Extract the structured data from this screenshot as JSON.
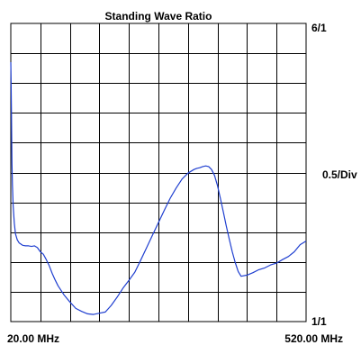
{
  "chart_data": {
    "type": "line",
    "title": "Standing Wave Ratio",
    "xlabel": "",
    "ylabel": "",
    "x_start_label": "20.00 MHz",
    "x_end_label": "520.00 MHz",
    "y_top_label": "6/1",
    "y_bottom_label": "1/1",
    "y_scale_label": "0.5/Div",
    "x_unit": "MHz",
    "xlim": [
      20,
      520
    ],
    "ylim": [
      1,
      6
    ],
    "grid": true,
    "grid_divisions": {
      "x": 10,
      "y": 10
    },
    "line_color": "#1f3fd0",
    "series": [
      {
        "x": [
          20,
          20.5,
          21,
          21.5,
          22,
          22.8,
          24,
          26,
          28,
          31,
          34,
          40,
          45,
          50,
          55,
          60,
          65,
          70,
          75,
          80,
          85,
          90,
          95,
          100,
          110,
          120,
          130,
          140,
          150,
          160,
          170,
          180,
          190,
          200,
          210,
          220,
          230,
          240,
          250,
          260,
          270,
          280,
          290,
          300,
          310,
          320,
          330,
          335,
          340,
          345,
          350,
          355,
          360,
          365,
          370,
          375,
          380,
          385,
          390,
          395,
          400,
          405,
          410,
          420,
          430,
          440,
          450,
          460,
          470,
          480,
          490,
          500,
          510,
          520
        ],
        "values": [
          5.35,
          5.05,
          4.55,
          4.05,
          3.65,
          3.3,
          2.95,
          2.65,
          2.47,
          2.37,
          2.32,
          2.28,
          2.27,
          2.27,
          2.26,
          2.27,
          2.24,
          2.17,
          2.13,
          2.04,
          1.94,
          1.81,
          1.7,
          1.6,
          1.45,
          1.33,
          1.22,
          1.17,
          1.13,
          1.12,
          1.14,
          1.16,
          1.27,
          1.41,
          1.56,
          1.69,
          1.83,
          2.03,
          2.24,
          2.45,
          2.66,
          2.87,
          3.07,
          3.24,
          3.39,
          3.49,
          3.55,
          3.57,
          3.58,
          3.6,
          3.61,
          3.6,
          3.55,
          3.45,
          3.28,
          3.06,
          2.83,
          2.6,
          2.38,
          2.17,
          1.99,
          1.84,
          1.76,
          1.78,
          1.82,
          1.87,
          1.9,
          1.95,
          1.98,
          2.04,
          2.09,
          2.17,
          2.29,
          2.35
        ]
      }
    ]
  }
}
